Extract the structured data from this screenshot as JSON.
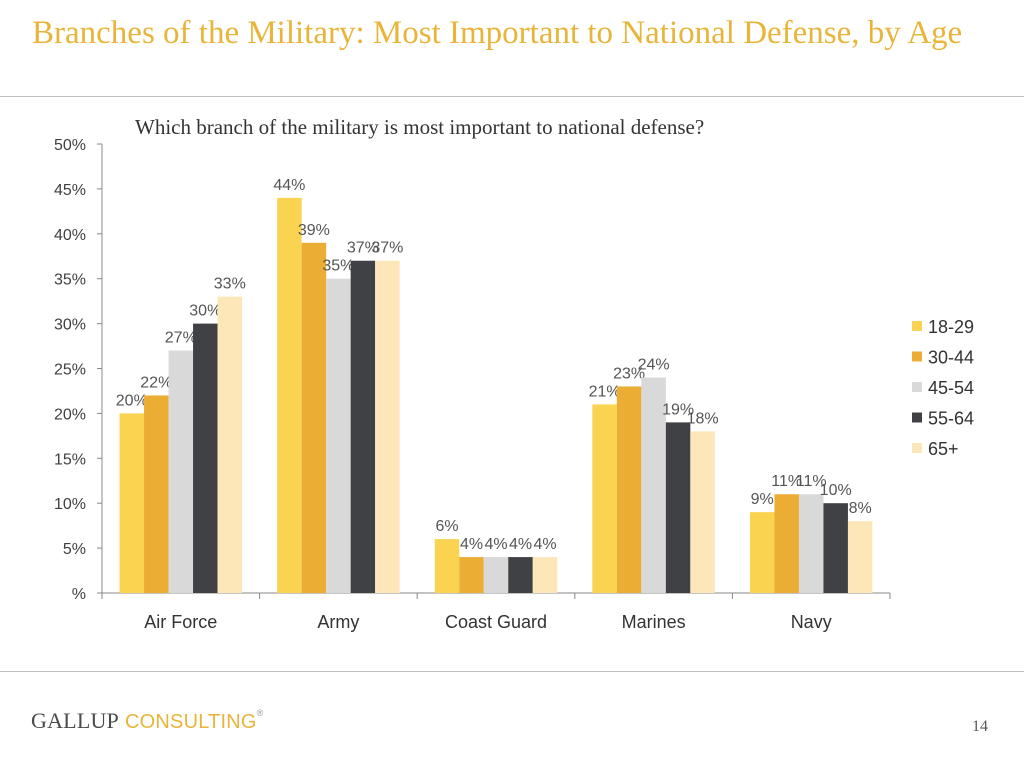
{
  "slide": {
    "title": "Branches of the Military: Most Important to National Defense, by Age",
    "subtitle": "Which branch of the military is most important to national defense?",
    "logo": {
      "word1": "GALLUP",
      "word2": "CONSULTING",
      "mark": "®"
    },
    "page_number": "14"
  },
  "colors": {
    "title": "#E8B53A",
    "series": [
      "#FAD351",
      "#EBAD33",
      "#D9D9D9",
      "#3F4145",
      "#FDE7B8"
    ]
  },
  "chart_data": {
    "type": "bar",
    "title": "Which branch of the military is most important to national defense?",
    "categories": [
      "Air Force",
      "Army",
      "Coast Guard",
      "Marines",
      "Navy"
    ],
    "series": [
      {
        "name": "18-29",
        "values": [
          20,
          44,
          6,
          21,
          9
        ],
        "color": "#FAD351"
      },
      {
        "name": "30-44",
        "values": [
          22,
          39,
          4,
          23,
          11
        ],
        "color": "#EBAD33"
      },
      {
        "name": "45-54",
        "values": [
          27,
          35,
          4,
          24,
          11
        ],
        "color": "#D9D9D9"
      },
      {
        "name": "55-64",
        "values": [
          30,
          37,
          4,
          19,
          10
        ],
        "color": "#3F4145"
      },
      {
        "name": "65+",
        "values": [
          33,
          37,
          4,
          18,
          8
        ],
        "color": "#FDE7B8"
      }
    ],
    "yticks": [
      "%",
      "5%",
      "10%",
      "15%",
      "20%",
      "25%",
      "30%",
      "35%",
      "40%",
      "45%",
      "50%"
    ],
    "ylim": [
      0,
      50
    ],
    "xlabel": "",
    "ylabel": "",
    "grid": false,
    "legend_position": "right"
  }
}
